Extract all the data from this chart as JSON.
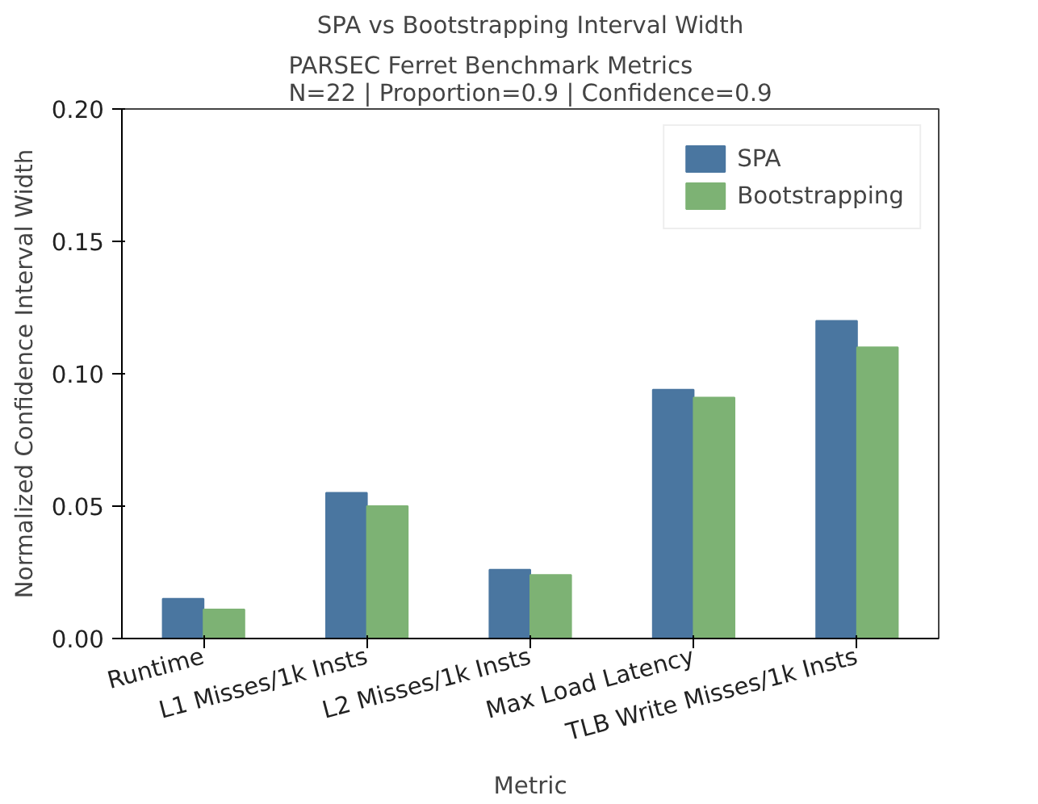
{
  "chart_data": {
    "type": "bar",
    "title": "SPA vs Bootstrapping Interval Width",
    "subtitle": "PARSEC Ferret Benchmark Metrics\nN=22 | Proportion=0.9 | Confidence=0.9",
    "xlabel": "Metric",
    "ylabel": "Normalized Confidence Interval Width",
    "categories": [
      "Runtime",
      "L1 Misses/1k Insts",
      "L2 Misses/1k Insts",
      "Max Load Latency",
      "TLB Write Misses/1k Insts"
    ],
    "series": [
      {
        "name": "SPA",
        "color": "#4a76a0",
        "values": [
          0.015,
          0.055,
          0.026,
          0.094,
          0.12
        ]
      },
      {
        "name": "Bootstrapping",
        "color": "#7db274",
        "values": [
          0.011,
          0.05,
          0.024,
          0.091,
          0.11
        ]
      }
    ],
    "ylim": [
      0,
      0.2
    ],
    "yticks": [
      {
        "value": 0,
        "label": "0.00"
      },
      {
        "value": 0.05,
        "label": "0.05"
      },
      {
        "value": 0.1,
        "label": "0.10"
      },
      {
        "value": 0.15,
        "label": "0.15"
      },
      {
        "value": 0.2,
        "label": "0.20"
      }
    ],
    "legend": "top right",
    "grid": false
  }
}
